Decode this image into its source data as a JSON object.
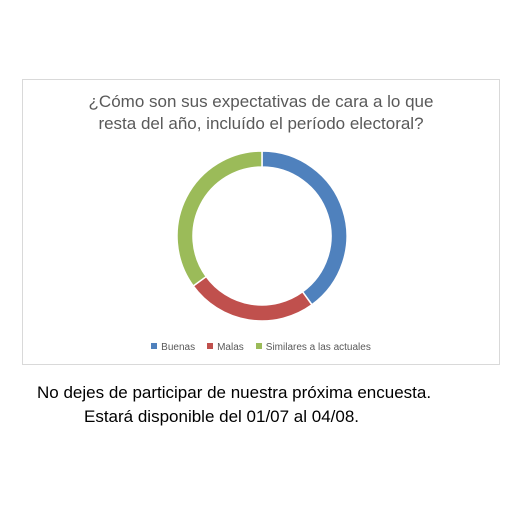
{
  "chart_data": {
    "type": "pie",
    "title_lines": [
      "¿Cómo son sus expectativas de cara a lo que",
      "resta del año, incluído el período electoral?"
    ],
    "categories": [
      "Buenas",
      "Malas",
      "Similares a las actuales"
    ],
    "values": [
      40,
      25,
      35
    ],
    "unit": "%",
    "colors": [
      "#4f81bd",
      "#c0504d",
      "#9bbb59"
    ],
    "legend_position": "bottom",
    "style": "donut"
  },
  "footer": {
    "line1": "No dejes de participar de nuestra próxima encuesta.",
    "line2": "Estará disponible del 01/07 al 04/08."
  }
}
